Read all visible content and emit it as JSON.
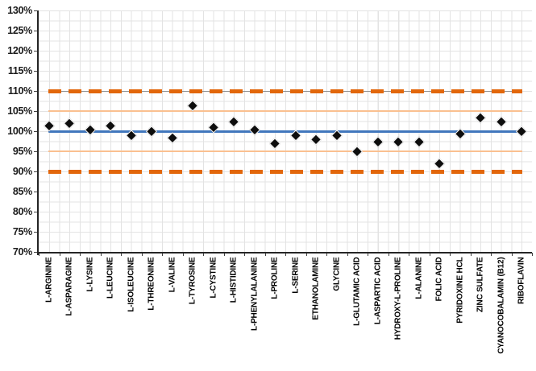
{
  "chart_data": {
    "type": "scatter",
    "title": "",
    "xlabel": "",
    "ylabel": "",
    "marker": "diamond",
    "categories": [
      "L-ARGININE",
      "L-ASPARAGINE",
      "L-LYSINE",
      "L-LEUCINE",
      "L-ISOLEUCINE",
      "L-THREONINE",
      "L-VALINE",
      "L-TYROSINE",
      "L-CYSTINE",
      "L-HISTIDINE",
      "L-PHENYLALANINE",
      "L-PROLINE",
      "L-SERINE",
      "ETHANOLAMINE",
      "GLYCINE",
      "L-GLUTAMIC ACID",
      "L-ASPARTIC ACID",
      "HYDROXY-L-PROLINE",
      "L-ALANINE",
      "FOLIC ACID",
      "PYRIDOXINE HCL",
      "ZINC SULFATE",
      "CYANOCOBALAMIN (B12)",
      "RIBOFLAVIN"
    ],
    "values": [
      101.5,
      102,
      100.5,
      101.5,
      99,
      100,
      98.5,
      106.5,
      101,
      102.5,
      100.5,
      97,
      99,
      98,
      99,
      95,
      97.5,
      97.5,
      97.5,
      92,
      99.5,
      103.5,
      102.5,
      100
    ],
    "ylim": [
      70,
      130
    ],
    "ytick_step": 5,
    "ytick_labels": [
      "130%",
      "125%",
      "120%",
      "115%",
      "110%",
      "105%",
      "100%",
      "95%",
      "90%",
      "85%",
      "80%",
      "75%",
      "70%"
    ],
    "grid": "minor-both-axes",
    "legend": "none",
    "reference_lines": [
      {
        "name": "upper-action-limit",
        "value": 110,
        "style": "dashed",
        "color": "#E2670B",
        "underlay": true
      },
      {
        "name": "upper-warning-limit",
        "value": 105,
        "style": "thin",
        "color": "#FAC090",
        "underlay": false
      },
      {
        "name": "target-100pct",
        "value": 100,
        "style": "solid",
        "color": "#4177BC",
        "underlay": false
      },
      {
        "name": "lower-warning-limit",
        "value": 95,
        "style": "thin",
        "color": "#FAC090",
        "underlay": false
      },
      {
        "name": "lower-action-limit",
        "value": 90,
        "style": "dashed",
        "color": "#E2670B",
        "underlay": false
      }
    ],
    "colors": {
      "marker": "#0e0e0e",
      "marker_outline": "#ffffff",
      "action_limit": "#E2670B",
      "warning_limit": "#FAC090",
      "target": "#4177BC",
      "gridline": "#e3e3e3",
      "axis": "#262626",
      "text": "#000000"
    }
  }
}
